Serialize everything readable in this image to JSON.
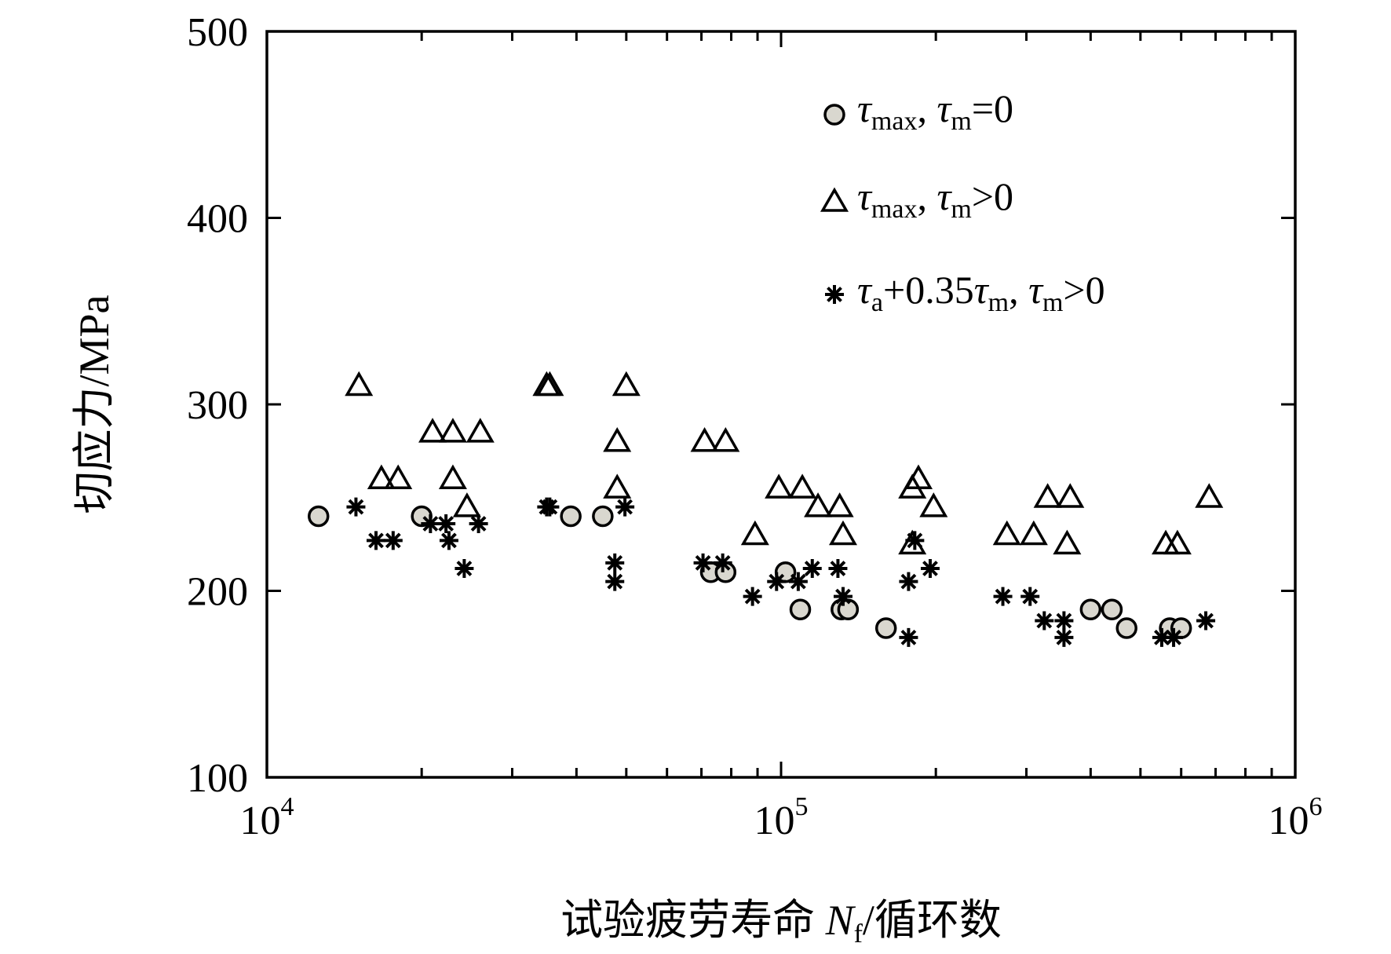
{
  "chart_data": {
    "type": "scatter",
    "x_scale": "log",
    "xlim": [
      10000,
      1000000
    ],
    "ylim": [
      100,
      500
    ],
    "grid": false,
    "legend_position": "top-right",
    "xlabel": "试验疲劳寿命 N_f/循环数",
    "ylabel": "切应力/MPa",
    "x_tick_labels": [
      {
        "base": "10",
        "exp": "4",
        "value": 10000
      },
      {
        "base": "10",
        "exp": "5",
        "value": 100000
      },
      {
        "base": "10",
        "exp": "6",
        "value": 1000000
      }
    ],
    "y_ticks": [
      100,
      200,
      300,
      400,
      500
    ],
    "series": [
      {
        "name": "τmax, τm=0",
        "marker": "circle",
        "color": "#d9d7cf",
        "points": [
          {
            "x": 12600,
            "y": 240
          },
          {
            "x": 20000,
            "y": 240
          },
          {
            "x": 39000,
            "y": 240
          },
          {
            "x": 45000,
            "y": 240
          },
          {
            "x": 73000,
            "y": 210
          },
          {
            "x": 78000,
            "y": 210
          },
          {
            "x": 102000,
            "y": 210
          },
          {
            "x": 109000,
            "y": 190
          },
          {
            "x": 131000,
            "y": 190
          },
          {
            "x": 135000,
            "y": 190
          },
          {
            "x": 160000,
            "y": 180
          },
          {
            "x": 400000,
            "y": 190
          },
          {
            "x": 440000,
            "y": 190
          },
          {
            "x": 470000,
            "y": 180
          },
          {
            "x": 570000,
            "y": 180
          },
          {
            "x": 600000,
            "y": 180
          }
        ]
      },
      {
        "name": "τmax, τm>0",
        "marker": "triangle",
        "color": "#000000",
        "points": [
          {
            "x": 15100,
            "y": 310
          },
          {
            "x": 16700,
            "y": 260
          },
          {
            "x": 18000,
            "y": 260
          },
          {
            "x": 21000,
            "y": 285
          },
          {
            "x": 23000,
            "y": 285
          },
          {
            "x": 23000,
            "y": 260
          },
          {
            "x": 24500,
            "y": 245
          },
          {
            "x": 26000,
            "y": 285
          },
          {
            "x": 35000,
            "y": 310
          },
          {
            "x": 35500,
            "y": 310
          },
          {
            "x": 48000,
            "y": 280
          },
          {
            "x": 48000,
            "y": 255
          },
          {
            "x": 50000,
            "y": 310
          },
          {
            "x": 71000,
            "y": 280
          },
          {
            "x": 78000,
            "y": 280
          },
          {
            "x": 99000,
            "y": 255
          },
          {
            "x": 110000,
            "y": 255
          },
          {
            "x": 118000,
            "y": 245
          },
          {
            "x": 130000,
            "y": 245
          },
          {
            "x": 132000,
            "y": 230
          },
          {
            "x": 89000,
            "y": 230
          },
          {
            "x": 180000,
            "y": 255
          },
          {
            "x": 185000,
            "y": 260
          },
          {
            "x": 180000,
            "y": 225
          },
          {
            "x": 198000,
            "y": 245
          },
          {
            "x": 275000,
            "y": 230
          },
          {
            "x": 310000,
            "y": 230
          },
          {
            "x": 330000,
            "y": 250
          },
          {
            "x": 365000,
            "y": 250
          },
          {
            "x": 360000,
            "y": 225
          },
          {
            "x": 560000,
            "y": 225
          },
          {
            "x": 590000,
            "y": 225
          },
          {
            "x": 680000,
            "y": 250
          }
        ]
      },
      {
        "name": "τa+0.35τm, τm>0",
        "marker": "asterisk",
        "color": "#000000",
        "points": [
          {
            "x": 14900,
            "y": 245
          },
          {
            "x": 16300,
            "y": 227
          },
          {
            "x": 17600,
            "y": 227
          },
          {
            "x": 20800,
            "y": 236
          },
          {
            "x": 22300,
            "y": 236
          },
          {
            "x": 22600,
            "y": 227
          },
          {
            "x": 24200,
            "y": 212
          },
          {
            "x": 25800,
            "y": 236
          },
          {
            "x": 35000,
            "y": 245
          },
          {
            "x": 35500,
            "y": 245
          },
          {
            "x": 47500,
            "y": 215
          },
          {
            "x": 47500,
            "y": 205
          },
          {
            "x": 49700,
            "y": 245
          },
          {
            "x": 70500,
            "y": 215
          },
          {
            "x": 77000,
            "y": 215
          },
          {
            "x": 88000,
            "y": 197
          },
          {
            "x": 98000,
            "y": 205
          },
          {
            "x": 108000,
            "y": 205
          },
          {
            "x": 115000,
            "y": 212
          },
          {
            "x": 129000,
            "y": 212
          },
          {
            "x": 132000,
            "y": 197
          },
          {
            "x": 177000,
            "y": 205
          },
          {
            "x": 177000,
            "y": 175
          },
          {
            "x": 182000,
            "y": 227
          },
          {
            "x": 195000,
            "y": 212
          },
          {
            "x": 270000,
            "y": 197
          },
          {
            "x": 305000,
            "y": 197
          },
          {
            "x": 325000,
            "y": 184
          },
          {
            "x": 355000,
            "y": 184
          },
          {
            "x": 355000,
            "y": 175
          },
          {
            "x": 550000,
            "y": 175
          },
          {
            "x": 580000,
            "y": 175
          },
          {
            "x": 670000,
            "y": 184
          }
        ]
      }
    ]
  },
  "legend": [
    {
      "marker": "circle",
      "sym1": "τ",
      "sub1": "max",
      "mid": ", ",
      "sym2": "τ",
      "sub2": "m",
      "tail": "=0"
    },
    {
      "marker": "triangle",
      "sym1": "τ",
      "sub1": "max",
      "mid": ", ",
      "sym2": "τ",
      "sub2": "m",
      "tail": ">0"
    },
    {
      "marker": "asterisk",
      "sym1": "τ",
      "sub1": "a",
      "mid": "+0.35",
      "sym2": "τ",
      "sub2": "m",
      "mid2": ", ",
      "sym3": "τ",
      "sub3": "m",
      "tail": ">0"
    }
  ],
  "axis_text": {
    "ylabel": "切应力/MPa",
    "xlabel_prefix": "试验疲劳寿命 ",
    "xlabel_var": "N",
    "xlabel_sub": "f",
    "xlabel_suffix": "/循环数"
  }
}
